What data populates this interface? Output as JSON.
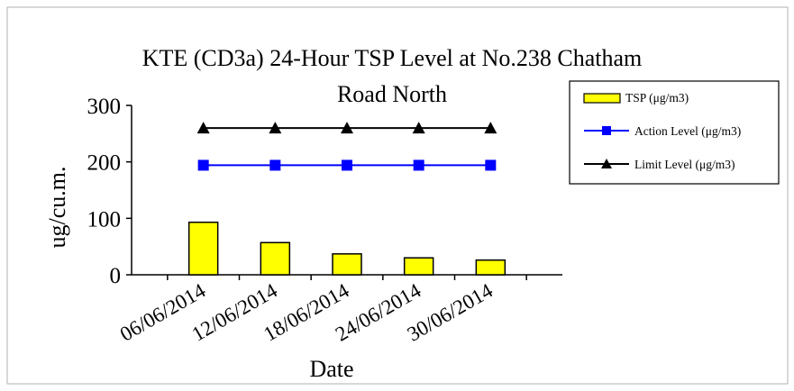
{
  "chart_data": {
    "type": "bar",
    "title_line1": "KTE  (CD3a) 24-Hour TSP Level at No.238 Chatham",
    "title_line2": "Road North",
    "xlabel": "Date",
    "ylabel": "ug/cu.m.",
    "ylim": [
      0,
      300
    ],
    "yticks": [
      "0",
      "100",
      "200",
      "300"
    ],
    "categories": [
      "06/06/2014",
      "12/06/2014",
      "18/06/2014",
      "24/06/2014",
      "30/06/2014"
    ],
    "series": [
      {
        "name": "TSP (μg/m3)",
        "kind": "bar",
        "color": "#ffff00",
        "values": [
          93,
          57,
          37,
          30,
          26
        ]
      },
      {
        "name": "Action Level (μg/m3)",
        "kind": "line",
        "marker": "square",
        "color": "#0000ff",
        "values": [
          194,
          194,
          194,
          194,
          194
        ]
      },
      {
        "name": "Limit Level (μg/m3)",
        "kind": "line",
        "marker": "triangle",
        "color": "#000000",
        "values": [
          260,
          260,
          260,
          260,
          260
        ]
      }
    ],
    "legend_position": "right"
  }
}
